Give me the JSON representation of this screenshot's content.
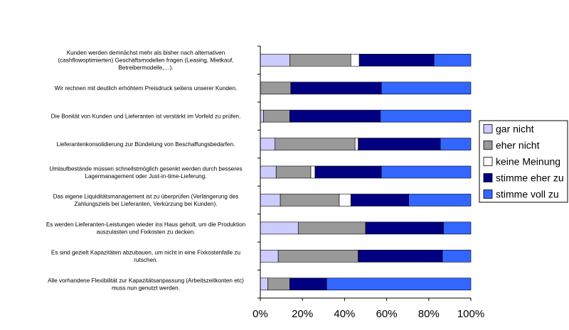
{
  "chart_data": {
    "type": "bar",
    "orientation": "horizontal",
    "stacked": "percent",
    "grid": false,
    "legend_position": "right",
    "xlim": [
      0,
      100
    ],
    "x_ticks": [
      "0%",
      "20%",
      "40%",
      "60%",
      "80%",
      "100%"
    ],
    "categories": [
      [
        "Kunden werden demnächst mehr als bisher nach alternativen",
        "(cashflowoptimierten) Geschäftsmodellen fragen (Leasing, Mietkauf,",
        "Betreibermodelle,…)."
      ],
      [
        "Wir rechnen mit deutlich erhöhtem Preisdruck seitens unserer Kunden."
      ],
      [
        "Die Bonität von Kunden und Lieferanten ist verstärkt im Vorfeld zu prüfen."
      ],
      [
        "Lieferantenkonsolidierung zur Bündelung von Beschaffungsbedarfen."
      ],
      [
        "Umlaufbestände müssen schnellstmöglich gesenkt werden durch besseres",
        "Lagermanagement oder Just-in-time-Lieferung."
      ],
      [
        "Das eigene Liquiditätsmanagement ist zu überprüfen (Verlängerung des",
        "Zahlungsziels bei Lieferanten, Verkürzung bei Kunden)."
      ],
      [
        "Es werden Lieferanten-Leistungen wieder ins Haus geholt, um die Produktion",
        "auszulasten und Fixkosten zu decken."
      ],
      [
        "Es sind gezielt Kapazitäten abzubauen, um nicht in eine Fixkostenfalle zu",
        "rutschen."
      ],
      [
        "Alle vorhandene Flexibilität zur Kapazitätsanpassung (Arbeitszeitkonten etc)",
        "muss nun genutzt werden."
      ]
    ],
    "series": [
      {
        "name": "gar nicht",
        "color": "#ccccff",
        "values": [
          14,
          0,
          1.5,
          7,
          7.5,
          9.5,
          18,
          8.5,
          3.5
        ]
      },
      {
        "name": "eher nicht",
        "color": "#999999",
        "values": [
          29,
          14.5,
          12.5,
          38,
          16.5,
          28,
          32,
          38,
          10.5
        ]
      },
      {
        "name": "keine Meinung",
        "color": "#ffffff",
        "values": [
          4,
          0,
          0,
          1.5,
          2,
          5.5,
          0,
          0,
          0
        ]
      },
      {
        "name": "stimme eher zu",
        "color": "#000080",
        "values": [
          35.5,
          43,
          43,
          39,
          31.5,
          27.5,
          37,
          40,
          17.5
        ]
      },
      {
        "name": "stimme voll zu",
        "color": "#3366ff",
        "values": [
          17.5,
          42.5,
          43,
          14.5,
          42.5,
          29.5,
          13,
          13.5,
          68.5
        ]
      }
    ]
  }
}
